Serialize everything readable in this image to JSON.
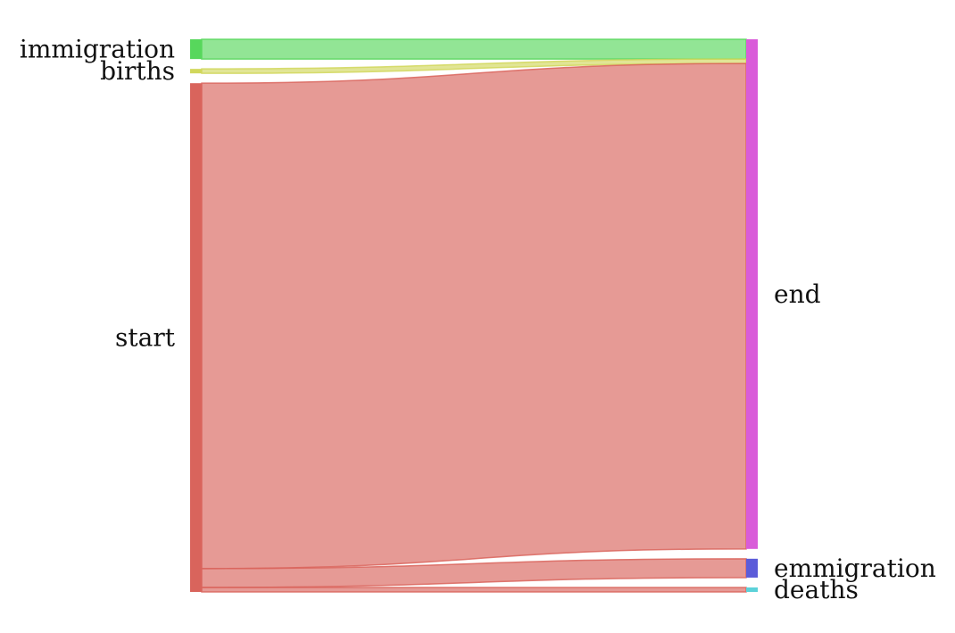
{
  "chart_data": {
    "type": "sankey",
    "nodes": [
      {
        "id": "immigration",
        "label": "immigration",
        "side": "left",
        "color": "#57d75c"
      },
      {
        "id": "births",
        "label": "births",
        "side": "left",
        "color": "#d1d75c"
      },
      {
        "id": "start",
        "label": "start",
        "side": "left",
        "color": "#d9645c"
      },
      {
        "id": "end",
        "label": "end",
        "side": "right",
        "color": "#d95cd9"
      },
      {
        "id": "emmigration",
        "label": "emmigration",
        "side": "right",
        "color": "#5c5cd9"
      },
      {
        "id": "deaths",
        "label": "deaths",
        "side": "right",
        "color": "#5cd2d9"
      }
    ],
    "flows": [
      {
        "source": "immigration",
        "target": "end",
        "value": 22
      },
      {
        "source": "births",
        "target": "end",
        "value": 5
      },
      {
        "source": "start",
        "target": "end",
        "value": 540
      },
      {
        "source": "start",
        "target": "emmigration",
        "value": 21
      },
      {
        "source": "start",
        "target": "deaths",
        "value": 5
      }
    ]
  }
}
